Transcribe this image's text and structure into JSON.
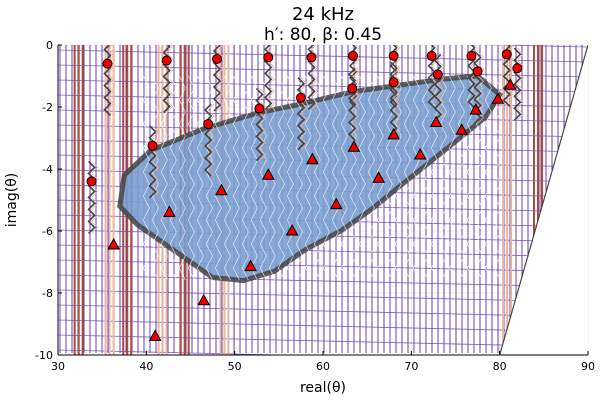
{
  "chart_data": {
    "type": "scatter",
    "title": "24 kHz",
    "subtitle": "h′: 80, β: 0.45",
    "xlabel": "real(θ)",
    "ylabel": "imag(θ)",
    "xlim": [
      30,
      90
    ],
    "ylim": [
      -10,
      0
    ],
    "xticks": [
      "30",
      "40",
      "50",
      "60",
      "70",
      "80",
      "90"
    ],
    "yticks": [
      "0",
      "-2",
      "-4",
      "-6",
      "-8",
      "-10"
    ],
    "grid": true,
    "legend": false,
    "colors": {
      "purple": "#6a3fb2",
      "brown": "#a84a3e",
      "peach": "#e8b69c",
      "blue": "#7a9fcf",
      "dark": "#444444",
      "marker": "#ee0000"
    },
    "contour_note_bands": [
      {
        "x": 32.0,
        "color": "brown"
      },
      {
        "x": 35.5,
        "color": "peach"
      },
      {
        "x": 37.5,
        "color": "brown"
      },
      {
        "x": 41.5,
        "color": "peach"
      },
      {
        "x": 44.0,
        "color": "brown"
      },
      {
        "x": 48.5,
        "color": "peach"
      },
      {
        "x": 80.5,
        "color": "peach"
      },
      {
        "x": 84.0,
        "color": "brown"
      }
    ],
    "series": [
      {
        "marker": "circle",
        "points": [
          {
            "x": 35.6,
            "y": -0.6
          },
          {
            "x": 42.3,
            "y": -0.5
          },
          {
            "x": 48.0,
            "y": -0.45
          },
          {
            "x": 53.8,
            "y": -0.4
          },
          {
            "x": 58.7,
            "y": -0.4
          },
          {
            "x": 63.4,
            "y": -0.35
          },
          {
            "x": 68.0,
            "y": -0.35
          },
          {
            "x": 72.3,
            "y": -0.35
          },
          {
            "x": 76.8,
            "y": -0.35
          },
          {
            "x": 80.8,
            "y": -0.3
          },
          {
            "x": 82.0,
            "y": -0.75
          },
          {
            "x": 77.5,
            "y": -0.85
          },
          {
            "x": 73.0,
            "y": -0.95
          },
          {
            "x": 68.0,
            "y": -1.2
          },
          {
            "x": 63.3,
            "y": -1.4
          },
          {
            "x": 57.5,
            "y": -1.7
          },
          {
            "x": 52.8,
            "y": -2.05
          },
          {
            "x": 47.0,
            "y": -2.55
          },
          {
            "x": 40.7,
            "y": -3.25
          },
          {
            "x": 33.8,
            "y": -4.4
          }
        ]
      },
      {
        "marker": "triangle",
        "points": [
          {
            "x": 81.2,
            "y": -1.3
          },
          {
            "x": 79.8,
            "y": -1.75
          },
          {
            "x": 77.3,
            "y": -2.1
          },
          {
            "x": 75.7,
            "y": -2.75
          },
          {
            "x": 72.8,
            "y": -2.5
          },
          {
            "x": 71.0,
            "y": -3.55
          },
          {
            "x": 68.0,
            "y": -2.9
          },
          {
            "x": 66.3,
            "y": -4.3
          },
          {
            "x": 63.5,
            "y": -3.3
          },
          {
            "x": 61.5,
            "y": -5.15
          },
          {
            "x": 58.8,
            "y": -3.7
          },
          {
            "x": 56.5,
            "y": -6.0
          },
          {
            "x": 53.8,
            "y": -4.2
          },
          {
            "x": 51.8,
            "y": -7.15
          },
          {
            "x": 48.5,
            "y": -4.7
          },
          {
            "x": 46.5,
            "y": -8.25
          },
          {
            "x": 42.6,
            "y": -5.4
          },
          {
            "x": 41.0,
            "y": -9.4
          },
          {
            "x": 36.3,
            "y": -6.45
          }
        ]
      }
    ]
  }
}
